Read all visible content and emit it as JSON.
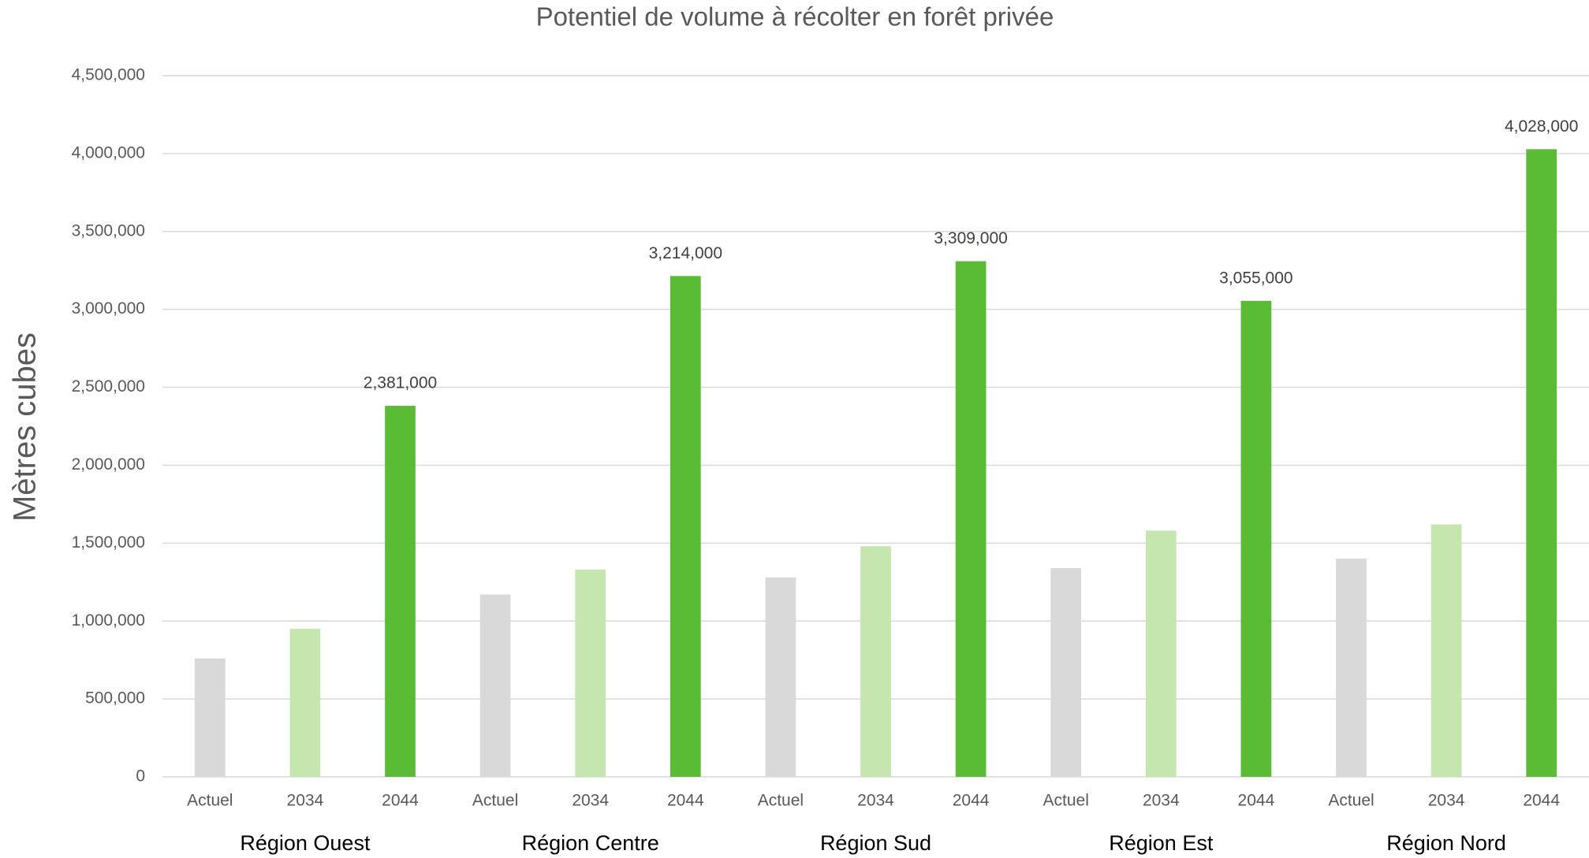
{
  "chart_data": {
    "type": "bar",
    "title": "Potentiel de volume à récolter en forêt privée",
    "y_label": "Mètres cubes",
    "categories": [
      "Région Ouest",
      "Région Centre",
      "Région Sud",
      "Région Est",
      "Région Nord"
    ],
    "series": [
      {
        "name": "Actuel",
        "color": "#d9d9d9",
        "values": [
          760000,
          1170000,
          1280000,
          1340000,
          1400000
        ]
      },
      {
        "name": "2034",
        "color": "#c5e6ae",
        "values": [
          950000,
          1330000,
          1480000,
          1580000,
          1620000
        ]
      },
      {
        "name": "2044",
        "color": "#59bc34",
        "values": [
          2381000,
          3214000,
          3309000,
          3055000,
          4028000
        ],
        "value_labels": [
          "2,381,000",
          "3,214,000",
          "3,309,000",
          "3,055,000",
          "4,028,000"
        ]
      }
    ],
    "ylim": [
      0,
      4500000
    ],
    "yticks": [
      0,
      {
        "value": 500000,
        "label": "500,000"
      },
      {
        "value": 1000000,
        "label": "1,000,000"
      },
      {
        "value": 1500000,
        "label": "1,500,000"
      },
      {
        "value": 2000000,
        "label": "2,000,000"
      },
      {
        "value": 2500000,
        "label": "2,500,000"
      },
      {
        "value": 3000000,
        "label": "3,000,000"
      },
      {
        "value": 3500000,
        "label": "3,500,000"
      },
      {
        "value": 4000000,
        "label": "4,000,000"
      },
      {
        "value": 4500000,
        "label": "4,500,000"
      }
    ],
    "grid": true
  }
}
